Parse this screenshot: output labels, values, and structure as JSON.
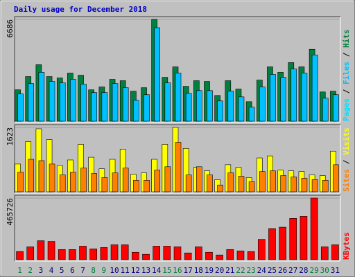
{
  "legend_separator": " / ",
  "chart_data": [
    {
      "type": "bar",
      "title": "Daily usage for December 2018",
      "ylim": [
        0,
        6686
      ],
      "yticks": [
        6686
      ],
      "series": [
        {
          "name": "Hits",
          "color": "#008040",
          "values": [
            2060,
            2930,
            3710,
            2930,
            2840,
            3160,
            3020,
            2060,
            2250,
            2750,
            2660,
            1970,
            2200,
            6686,
            2880,
            3570,
            2290,
            2660,
            2610,
            1690,
            2660,
            2110,
            1280,
            2700,
            3570,
            3210,
            3850,
            3570,
            4720,
            1920,
            1970
          ]
        },
        {
          "name": "Files",
          "color": "#00c0ff",
          "values": [
            1790,
            2470,
            3210,
            2610,
            2520,
            2750,
            2430,
            1880,
            1880,
            2470,
            2200,
            1370,
            1740,
            6140,
            2520,
            3160,
            1830,
            2010,
            2010,
            1330,
            1970,
            1600,
            920,
            2250,
            3070,
            2880,
            3430,
            3160,
            4350,
            1510,
            1740
          ]
        },
        {
          "name": "Pages",
          "color": "#00e0ff",
          "values": [
            null,
            null,
            null,
            null,
            null,
            null,
            null,
            null,
            null,
            null,
            null,
            null,
            null,
            null,
            null,
            null,
            null,
            null,
            null,
            null,
            null,
            null,
            null,
            null,
            null,
            null,
            null,
            null,
            null,
            null,
            null
          ]
        }
      ]
    },
    {
      "type": "bar",
      "ylim": [
        0,
        1623
      ],
      "yticks": [
        1623
      ],
      "series": [
        {
          "name": "Visits",
          "color": "#ffff00",
          "values": [
            700,
            1264,
            1589,
            1315,
            666,
            803,
            1196,
            871,
            581,
            820,
            1076,
            444,
            478,
            820,
            1196,
            1623,
            1093,
            615,
            530,
            307,
            683,
            615,
            359,
            854,
            905,
            547,
            530,
            512,
            427,
            410,
            1025
          ]
        },
        {
          "name": "Sites",
          "color": "#ff8000",
          "values": [
            495,
            820,
            786,
            700,
            427,
            495,
            598,
            461,
            359,
            478,
            598,
            290,
            290,
            547,
            632,
            1247,
            427,
            632,
            427,
            171,
            478,
            393,
            256,
            512,
            530,
            410,
            376,
            342,
            307,
            290,
            683
          ]
        }
      ]
    },
    {
      "type": "bar",
      "ylim": [
        0,
        465726
      ],
      "yticks": [
        465726
      ],
      "categories": [
        "1",
        "2",
        "3",
        "4",
        "5",
        "6",
        "7",
        "8",
        "9",
        "10",
        "11",
        "12",
        "13",
        "14",
        "15",
        "16",
        "17",
        "18",
        "19",
        "20",
        "21",
        "22",
        "23",
        "24",
        "25",
        "26",
        "27",
        "28",
        "29",
        "30",
        "31"
      ],
      "category_colors": [
        "#008040",
        "#008040",
        "#000080",
        "#000080",
        "#000080",
        "#000080",
        "#000080",
        "#008040",
        "#008040",
        "#000080",
        "#000080",
        "#000080",
        "#000080",
        "#000080",
        "#008040",
        "#008040",
        "#000080",
        "#000080",
        "#000080",
        "#000080",
        "#000080",
        "#008040",
        "#008040",
        "#000080",
        "#000080",
        "#000080",
        "#000080",
        "#000080",
        "#008040",
        "#008040",
        "#000080"
      ],
      "series": [
        {
          "name": "KBytes",
          "color": "#ff0000",
          "values": [
            61400,
            97200,
            143300,
            138200,
            76800,
            76800,
            102400,
            81900,
            92100,
            112600,
            112600,
            56300,
            40900,
            102400,
            102400,
            97200,
            51200,
            97200,
            56300,
            35800,
            76800,
            66500,
            61400,
            153500,
            235400,
            245700,
            312200,
            327600,
            465726,
            97200,
            112600
          ]
        }
      ]
    }
  ]
}
